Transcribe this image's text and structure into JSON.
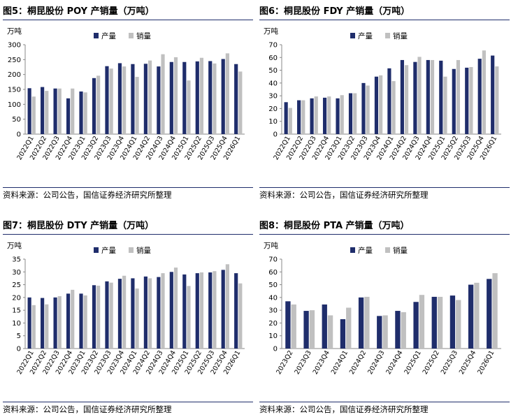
{
  "source_note": "资料来源：公司公告，国信证券经济研究所整理",
  "colors": {
    "production": "#1f2d6b",
    "sales": "#c0c0c0",
    "axis": "#888888",
    "rule": "#1f2d6b"
  },
  "chart_data": [
    {
      "type": "bar",
      "title": "图5：桐昆股份 POY 产销量（万吨）",
      "ylabel": "万吨",
      "ylim": [
        0,
        300
      ],
      "yticks": [
        0,
        50,
        100,
        150,
        200,
        250,
        300
      ],
      "categories": [
        "2022Q1",
        "2022Q2",
        "2022Q3",
        "2022Q4",
        "2023Q1",
        "2023Q2",
        "2023Q3",
        "2023Q4",
        "2024Q1",
        "2024Q2",
        "2024Q3",
        "2024Q4",
        "2025Q1",
        "2025Q2",
        "2025Q3",
        "2025Q4",
        "2026Q1"
      ],
      "series": [
        {
          "name": "产量",
          "values": [
            154,
            158,
            153,
            120,
            143,
            188,
            228,
            238,
            235,
            236,
            227,
            242,
            242,
            244,
            245,
            252,
            235
          ]
        },
        {
          "name": "销量",
          "values": [
            126,
            145,
            153,
            153,
            140,
            196,
            220,
            227,
            192,
            247,
            268,
            258,
            180,
            256,
            237,
            271,
            210
          ]
        }
      ]
    },
    {
      "type": "bar",
      "title": "图6：桐昆股份 FDY 产销量（万吨）",
      "ylabel": "万吨",
      "ylim": [
        0,
        70
      ],
      "yticks": [
        0,
        10,
        20,
        30,
        40,
        50,
        60,
        70
      ],
      "categories": [
        "2022Q1",
        "2022Q2",
        "2022Q3",
        "2022Q4",
        "2023Q1",
        "2023Q2",
        "2023Q3",
        "2023Q4",
        "2024Q1",
        "2024Q2",
        "2024Q3",
        "2024Q4",
        "2025Q1",
        "2025Q2",
        "2025Q3",
        "2025Q4",
        "2026Q1"
      ],
      "series": [
        {
          "name": "产量",
          "values": [
            25,
            26.5,
            28,
            28.5,
            28,
            32,
            40,
            45,
            51.5,
            58,
            56.5,
            58,
            57.5,
            51,
            52,
            59,
            61.5
          ]
        },
        {
          "name": "销量",
          "values": [
            20.5,
            26.5,
            29.5,
            29.5,
            30.5,
            32,
            38,
            46,
            41.5,
            54,
            60.5,
            58,
            45,
            58,
            52.5,
            65.5,
            53
          ]
        }
      ]
    },
    {
      "type": "bar",
      "title": "图7：桐昆股份 DTY 产销量（万吨）",
      "ylabel": "万吨",
      "ylim": [
        0,
        35
      ],
      "yticks": [
        0,
        5,
        10,
        15,
        20,
        25,
        30,
        35
      ],
      "categories": [
        "2022Q1",
        "2022Q2",
        "2022Q3",
        "2022Q4",
        "2023Q1",
        "2023Q2",
        "2023Q3",
        "2023Q4",
        "2024Q1",
        "2024Q2",
        "2024Q3",
        "2024Q4",
        "2025Q1",
        "2025Q2",
        "2025Q3",
        "2025Q4",
        "2026Q1"
      ],
      "series": [
        {
          "name": "产量",
          "values": [
            20,
            19.8,
            20,
            21.5,
            21.5,
            24.8,
            26.3,
            27.3,
            27.5,
            28.2,
            28,
            30,
            29,
            29.5,
            29.8,
            30.8,
            29.5
          ]
        },
        {
          "name": "销量",
          "values": [
            17,
            17.3,
            20.5,
            23,
            20.8,
            24.6,
            25.8,
            28.5,
            23.5,
            27.5,
            29.5,
            31.7,
            24.5,
            29.8,
            30.3,
            33,
            25.5
          ]
        }
      ]
    },
    {
      "type": "bar",
      "title": "图8：桐昆股份 PTA 产销量（万吨）",
      "ylabel": "万吨",
      "ylim": [
        0,
        70
      ],
      "yticks": [
        0,
        10,
        20,
        30,
        40,
        50,
        60,
        70
      ],
      "categories": [
        "2023Q2",
        "2023Q3",
        "2023Q4",
        "2024Q1",
        "2024Q2",
        "2024Q3",
        "2024Q4",
        "2025Q1",
        "2025Q2",
        "2025Q3",
        "2025Q4",
        "2026Q1"
      ],
      "series": [
        {
          "name": "产量",
          "values": [
            37,
            29.5,
            34.5,
            23,
            40,
            25.5,
            29.5,
            36.5,
            40.5,
            41.5,
            50,
            54.5
          ]
        },
        {
          "name": "销量",
          "values": [
            34.5,
            30,
            26,
            32,
            40.5,
            26,
            28.5,
            42,
            40.5,
            38,
            51.5,
            59
          ]
        }
      ]
    }
  ]
}
